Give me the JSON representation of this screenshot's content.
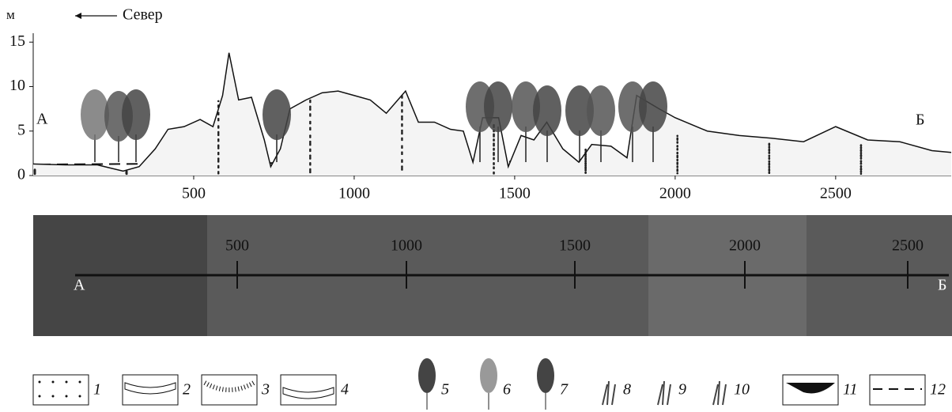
{
  "chart_data": {
    "type": "line",
    "y_label": "м",
    "direction_label": "Север",
    "start_label": "А",
    "end_label": "Б",
    "x": [
      0,
      100,
      200,
      280,
      330,
      380,
      420,
      470,
      520,
      560,
      590,
      610,
      640,
      680,
      720,
      740,
      770,
      800,
      850,
      900,
      950,
      1000,
      1050,
      1100,
      1160,
      1200,
      1250,
      1300,
      1340,
      1370,
      1400,
      1450,
      1480,
      1520,
      1560,
      1600,
      1650,
      1700,
      1740,
      1800,
      1850,
      1880,
      1950,
      2000,
      2100,
      2200,
      2300,
      2400,
      2500,
      2600,
      2700,
      2800,
      2860
    ],
    "values": [
      1.3,
      1.2,
      1.2,
      0.5,
      1,
      3,
      5.2,
      5.5,
      6.3,
      5.5,
      9,
      13.8,
      8.5,
      8.8,
      4,
      1,
      3,
      7.5,
      8.5,
      9.3,
      9.5,
      9,
      8.5,
      7,
      9.5,
      6,
      6,
      5.2,
      5,
      1.5,
      6.5,
      6.5,
      1,
      4.5,
      4,
      6,
      3,
      1.5,
      3.5,
      3.3,
      2,
      9,
      7.5,
      6.5,
      5,
      4.5,
      4.2,
      3.8,
      5.5,
      4,
      3.8,
      2.8,
      2.6
    ],
    "color": "#111111",
    "xlim": [
      0,
      2860
    ],
    "ylim": [
      0,
      16
    ],
    "xticks": [
      500,
      1000,
      1500,
      2000,
      2500
    ],
    "yticks": [
      0,
      5,
      10,
      15
    ]
  },
  "map_strip": {
    "start_label": "А",
    "end_label": "Б",
    "labels": [
      500,
      1000,
      1500,
      2000,
      2500
    ]
  },
  "legend": {
    "items": [
      1,
      2,
      3,
      4,
      5,
      6,
      7,
      8,
      9,
      10,
      11,
      12
    ]
  }
}
